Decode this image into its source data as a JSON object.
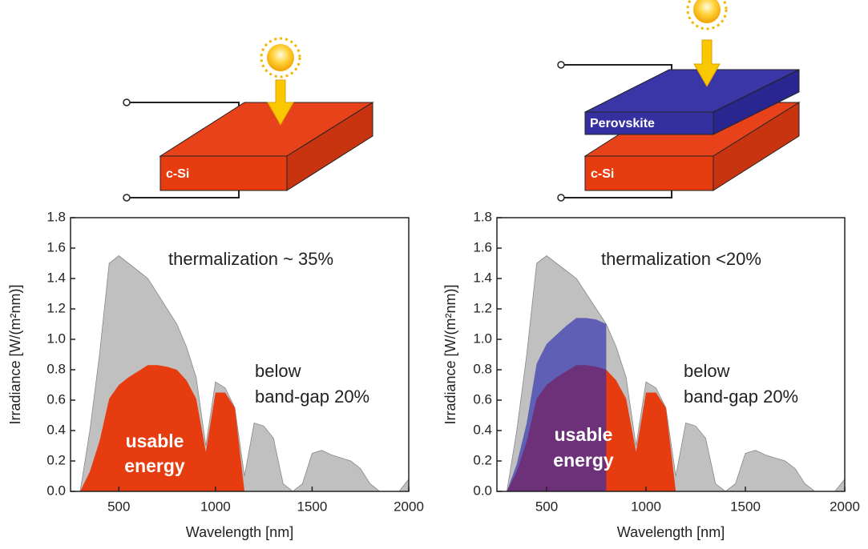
{
  "diagrams": [
    {
      "layers": [
        "c-Si"
      ]
    },
    {
      "layers": [
        "Perovskite",
        "c-Si"
      ]
    }
  ],
  "chart_data": [
    {
      "type": "area",
      "xlabel": "Wavelength [nm]",
      "ylabel": "Irradiance [W/(m²nm)]",
      "annotations": [
        "thermalization ~ 35%",
        "below",
        "band-gap 20%",
        "usable",
        "energy"
      ],
      "x": [
        300,
        350,
        400,
        450,
        500,
        550,
        600,
        650,
        700,
        750,
        800,
        850,
        900,
        950,
        1000,
        1050,
        1100,
        1150,
        1200,
        1250,
        1300,
        1350,
        1400,
        1450,
        1500,
        1550,
        1600,
        1650,
        1700,
        1750,
        1800,
        1850,
        1900,
        1950,
        2000
      ],
      "series": [
        {
          "color": "#c0c0c0",
          "values": [
            0,
            0.4,
            0.9,
            1.5,
            1.55,
            1.5,
            1.45,
            1.4,
            1.3,
            1.2,
            1.1,
            0.95,
            0.75,
            0.3,
            0.72,
            0.68,
            0.55,
            0.1,
            0.45,
            0.43,
            0.35,
            0.05,
            0,
            0.05,
            0.25,
            0.27,
            0.24,
            0.22,
            0.2,
            0.15,
            0.05,
            0,
            0,
            0,
            0.08
          ]
        },
        {
          "color": "#e63c10",
          "values": [
            0,
            0.13,
            0.33,
            0.61,
            0.7,
            0.75,
            0.79,
            0.83,
            0.83,
            0.82,
            0.8,
            0.73,
            0.61,
            0.26,
            0.65,
            0.65,
            0.55,
            0,
            null,
            null,
            null,
            null,
            null,
            null,
            null,
            null,
            null,
            null,
            null,
            null,
            null,
            null,
            null,
            null,
            null
          ]
        }
      ],
      "xlim": [
        250,
        2000
      ],
      "ylim": [
        0,
        1.8
      ],
      "xticks": [
        500,
        1000,
        1500,
        2000
      ],
      "yticks": [
        {
          "value": 0,
          "label": "0.0"
        },
        0.2,
        0.4,
        0.6,
        0.8,
        {
          "value": 1,
          "label": "1.0"
        },
        1.2,
        1.4,
        1.6,
        1.8
      ]
    },
    {
      "type": "area",
      "xlabel": "Wavelength [nm]",
      "ylabel": "Irradiance [W/(m²nm)]",
      "annotations": [
        "thermalization <20%",
        "below",
        "band-gap 20%",
        "usable",
        "energy"
      ],
      "x": [
        300,
        350,
        400,
        450,
        500,
        550,
        600,
        650,
        700,
        750,
        800,
        850,
        900,
        950,
        1000,
        1050,
        1100,
        1150,
        1200,
        1250,
        1300,
        1350,
        1400,
        1450,
        1500,
        1550,
        1600,
        1650,
        1700,
        1750,
        1800,
        1850,
        1900,
        1950,
        2000
      ],
      "series": [
        {
          "color": "#c0c0c0",
          "values": [
            0,
            0.4,
            0.9,
            1.5,
            1.55,
            1.5,
            1.45,
            1.4,
            1.3,
            1.2,
            1.1,
            0.95,
            0.75,
            0.3,
            0.72,
            0.68,
            0.55,
            0.1,
            0.45,
            0.43,
            0.35,
            0.05,
            0,
            0.05,
            0.25,
            0.27,
            0.24,
            0.22,
            0.2,
            0.15,
            0.05,
            0,
            0,
            0,
            0.08
          ]
        },
        {
          "color": "#e63c10",
          "values": [
            0,
            0.13,
            0.33,
            0.61,
            0.7,
            0.75,
            0.79,
            0.83,
            0.83,
            0.82,
            0.8,
            0.73,
            0.61,
            0.26,
            0.65,
            0.65,
            0.55,
            0,
            null,
            null,
            null,
            null,
            null,
            null,
            null,
            null,
            null,
            null,
            null,
            null,
            null,
            null,
            null,
            null,
            null
          ]
        },
        {
          "color": "#2b2bb0",
          "values": [
            0,
            0.18,
            0.45,
            0.84,
            0.97,
            1.03,
            1.09,
            1.14,
            1.14,
            1.13,
            1.1,
            null,
            null,
            null,
            null,
            null,
            null,
            null,
            null,
            null,
            null,
            null,
            null,
            null,
            null,
            null,
            null,
            null,
            null,
            null,
            null,
            null,
            null,
            null,
            null
          ]
        }
      ],
      "xlim": [
        250,
        2000
      ],
      "ylim": [
        0,
        1.8
      ],
      "xticks": [
        500,
        1000,
        1500,
        2000
      ],
      "yticks": [
        {
          "value": 0,
          "label": "0.0"
        },
        0.2,
        0.4,
        0.6,
        0.8,
        {
          "value": 1,
          "label": "1.0"
        },
        1.2,
        1.4,
        1.6,
        1.8
      ]
    }
  ]
}
